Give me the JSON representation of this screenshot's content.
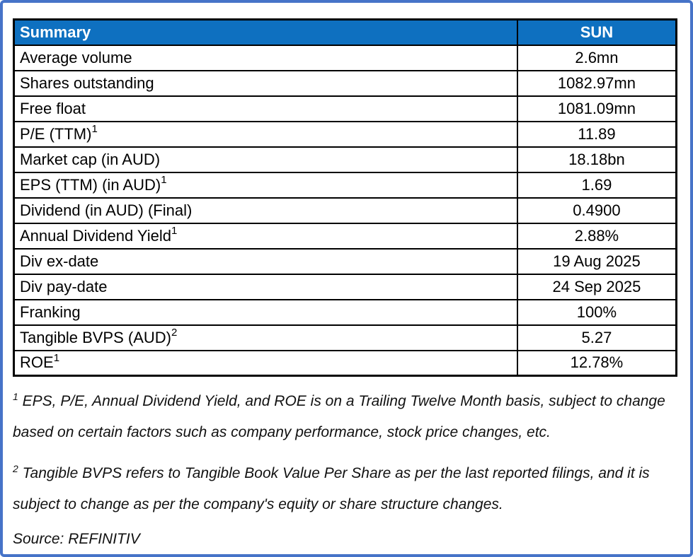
{
  "colors": {
    "header_bg": "#0E70C0",
    "header_text": "#FFFFFF",
    "frame_border": "#4673C8",
    "table_border": "#000000"
  },
  "table": {
    "header": {
      "label": "Summary",
      "value": "SUN"
    },
    "rows": [
      {
        "label": "Average volume",
        "sup": "",
        "value": "2.6mn"
      },
      {
        "label": "Shares outstanding",
        "sup": "",
        "value": "1082.97mn"
      },
      {
        "label": "Free float",
        "sup": "",
        "value": "1081.09mn"
      },
      {
        "label": "P/E (TTM)",
        "sup": "1",
        "value": "11.89"
      },
      {
        "label": "Market cap (in AUD)",
        "sup": "",
        "value": "18.18bn"
      },
      {
        "label": "EPS (TTM) (in AUD)",
        "sup": "1",
        "value": "1.69"
      },
      {
        "label": "Dividend (in AUD) (Final)",
        "sup": "",
        "value": "0.4900"
      },
      {
        "label": "Annual Dividend Yield",
        "sup": "1",
        "value": "2.88%"
      },
      {
        "label": "Div ex-date",
        "sup": "",
        "value": "19 Aug 2025"
      },
      {
        "label": "Div pay-date",
        "sup": "",
        "value": "24 Sep 2025"
      },
      {
        "label": "Franking",
        "sup": "",
        "value": "100%"
      },
      {
        "label": "Tangible BVPS (AUD)",
        "sup": "2",
        "value": "5.27"
      },
      {
        "label": "ROE",
        "sup": "1",
        "value": "12.78%"
      }
    ]
  },
  "footnotes": [
    {
      "sup": "1",
      "text": " EPS, P/E, Annual Dividend Yield, and ROE is on a Trailing Twelve Month basis, subject to change based on certain factors such as company performance, stock price changes, etc."
    },
    {
      "sup": "2",
      "text": " Tangible BVPS refers to Tangible Book Value Per Share as per the last reported filings, and it is subject to change as per the company's equity or share structure changes."
    }
  ],
  "source": "Source: REFINITIV"
}
